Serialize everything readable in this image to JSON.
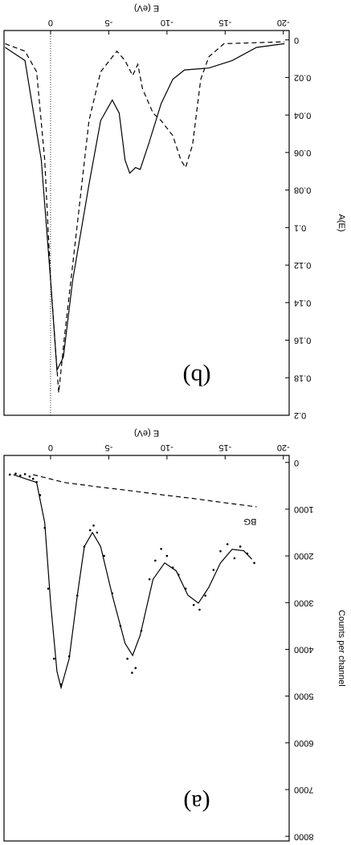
{
  "chart_data": [
    {
      "type": "line",
      "panel_label": "(a)",
      "xlabel": "E (eV)",
      "ylabel": "Counts per channel",
      "xlim": [
        -20.5,
        4
      ],
      "ylim": [
        -150,
        8100
      ],
      "xticks": [
        -20,
        -15,
        -10,
        -5,
        0
      ],
      "yticks": [
        0,
        1000,
        2000,
        3000,
        4000,
        5000,
        6000,
        7000,
        8000
      ],
      "series": [
        {
          "mode": "lines",
          "dash": "solid",
          "color": "#000000",
          "x": [
            3.2,
            1.2,
            0.5,
            0,
            -0.55,
            -0.9,
            -1.6,
            -2.3,
            -2.9,
            -3.6,
            -4.3,
            -5.3,
            -6.4,
            -7.05,
            -7.7,
            -8.8,
            -9.8,
            -10.8,
            -11.8,
            -12.7,
            -13.6,
            -14.6,
            -15.6,
            -16.6,
            -17.3
          ],
          "values": [
            260,
            430,
            1290,
            3000,
            4470,
            4820,
            4200,
            2840,
            1800,
            1500,
            1800,
            2840,
            3870,
            4130,
            3700,
            2500,
            2150,
            2320,
            2840,
            3010,
            2670,
            2150,
            1860,
            1890,
            2070
          ]
        },
        {
          "mode": "markers",
          "color": "#000000",
          "x": [
            3.5,
            3.0,
            2.6,
            2.2,
            1.8,
            1.5,
            1.2,
            0.9,
            0.5,
            0.2,
            -0.3,
            -0.9,
            -1.6,
            -2.3,
            -2.9,
            -3.4,
            -3.7,
            -4.0,
            -4.6,
            -5.3,
            -6.0,
            -6.6,
            -7.0,
            -7.3,
            -7.8,
            -8.5,
            -9.0,
            -9.5,
            -10.0,
            -10.5,
            -11.0,
            -11.6,
            -12.3,
            -12.8,
            -13.3,
            -14.0,
            -14.6,
            -15.2,
            -15.8,
            -16.3,
            -16.9,
            -17.5
          ],
          "values": [
            260,
            240,
            280,
            250,
            300,
            350,
            420,
            700,
            1400,
            2700,
            4200,
            4750,
            4150,
            2850,
            1800,
            1450,
            1350,
            1500,
            2000,
            2800,
            3500,
            4200,
            4500,
            4400,
            3600,
            2500,
            2100,
            1850,
            2000,
            2250,
            2400,
            2700,
            3050,
            3150,
            2850,
            2300,
            1900,
            1750,
            2050,
            1800,
            1950,
            2150
          ]
        },
        {
          "mode": "lines",
          "dash": "dashed",
          "color": "#000000",
          "name": "BG",
          "x": [
            1.5,
            -1.2,
            -4,
            -6.7,
            -9.5,
            -12.2,
            -14.9,
            -17.7
          ],
          "values": [
            260,
            430,
            520,
            600,
            690,
            770,
            860,
            950
          ]
        }
      ]
    },
    {
      "type": "line",
      "panel_label": "(b)",
      "xlabel": "E (eV)",
      "ylabel": "A(E)",
      "xlim": [
        -20.5,
        4
      ],
      "ylim": [
        -0.005,
        0.2
      ],
      "xticks": [
        -20,
        -15,
        -10,
        -5,
        0
      ],
      "yticks": [
        0,
        0.02,
        0.04,
        0.06,
        0.08,
        0.1,
        0.12,
        0.14,
        0.16,
        0.18,
        0.2
      ],
      "reference_line_x": 0,
      "series": [
        {
          "mode": "lines",
          "dash": "solid",
          "color": "#000000",
          "x": [
            3.9,
            2.2,
            0.8,
            0,
            -0.55,
            -1.1,
            -1.9,
            -3.3,
            -4.3,
            -5.3,
            -5.9,
            -6.4,
            -6.8,
            -7.3,
            -7.7,
            -8.4,
            -9.5,
            -10.5,
            -11.5,
            -13.6,
            -15.6,
            -17.7,
            -20.1
          ],
          "values": [
            0.004,
            0.011,
            0.064,
            0.128,
            0.176,
            0.169,
            0.128,
            0.077,
            0.043,
            0.032,
            0.039,
            0.064,
            0.071,
            0.068,
            0.069,
            0.056,
            0.034,
            0.021,
            0.016,
            0.015,
            0.011,
            0.004,
            0.002
          ]
        },
        {
          "mode": "lines",
          "dash": "dashed",
          "color": "#000000",
          "x": [
            3.9,
            2.2,
            1.2,
            0.5,
            0,
            -0.7,
            -1.2,
            -2.3,
            -3.3,
            -4.3,
            -5.7,
            -6.4,
            -7.05,
            -7.5,
            -7.9,
            -8.8,
            -9.5,
            -10.5,
            -11.2,
            -11.6,
            -12.2,
            -12.9,
            -13.6,
            -14.9,
            -20.1
          ],
          "values": [
            0.002,
            0.006,
            0.017,
            0.064,
            0.128,
            0.188,
            0.158,
            0.098,
            0.043,
            0.017,
            0.006,
            0.011,
            0.019,
            0.013,
            0.026,
            0.039,
            0.043,
            0.051,
            0.064,
            0.068,
            0.056,
            0.021,
            0.009,
            0.002,
            0.001
          ]
        }
      ]
    }
  ]
}
